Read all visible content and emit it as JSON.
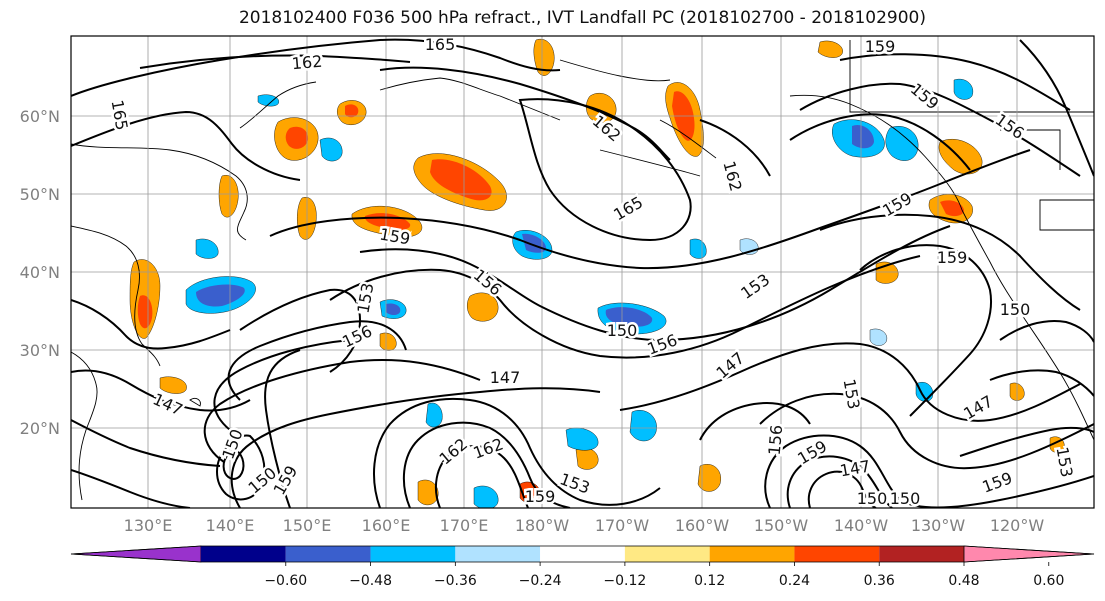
{
  "title": "2018102400 F036 500 hPa refract., IVT Landfall PC (2018102700 - 2018102900)",
  "lat_ticks": [
    "60°N",
    "50°N",
    "40°N",
    "30°N",
    "20°N"
  ],
  "lon_ticks": [
    "130°E",
    "140°E",
    "150°E",
    "160°E",
    "170°E",
    "180°W",
    "170°W",
    "160°W",
    "150°W",
    "140°W",
    "130°W",
    "120°W"
  ],
  "contour_labels": [
    "165",
    "162",
    "165",
    "159",
    "156",
    "159",
    "162",
    "162",
    "165",
    "159",
    "159",
    "159",
    "156",
    "153",
    "156",
    "153",
    "150",
    "156",
    "150",
    "147",
    "147",
    "147",
    "153",
    "147",
    "150",
    "162",
    "150",
    "156",
    "159",
    "147",
    "150",
    "159",
    "153",
    "153",
    "159",
    "150",
    "162",
    "159"
  ],
  "colorbar": {
    "ticks": [
      "−0.60",
      "−0.48",
      "−0.36",
      "−0.24",
      "−0.12",
      "0.12",
      "0.24",
      "0.36",
      "0.48",
      "0.60"
    ],
    "colors": [
      "#9932cc",
      "#00008b",
      "#3a5fcd",
      "#00bfff",
      "#b0e2ff",
      "#ffffff",
      "#ffe984",
      "#ffa500",
      "#ff4500",
      "#b22222",
      "#ff88ad"
    ]
  },
  "colors": {
    "neg_light": "#b0e2ff",
    "neg_mid": "#00bfff",
    "neg_strong": "#3a5fcd",
    "neg_deep": "#00008b",
    "pos_light": "#ffe984",
    "pos_mid": "#ffa500",
    "pos_strong": "#ff4500",
    "pos_deep": "#b22222"
  }
}
